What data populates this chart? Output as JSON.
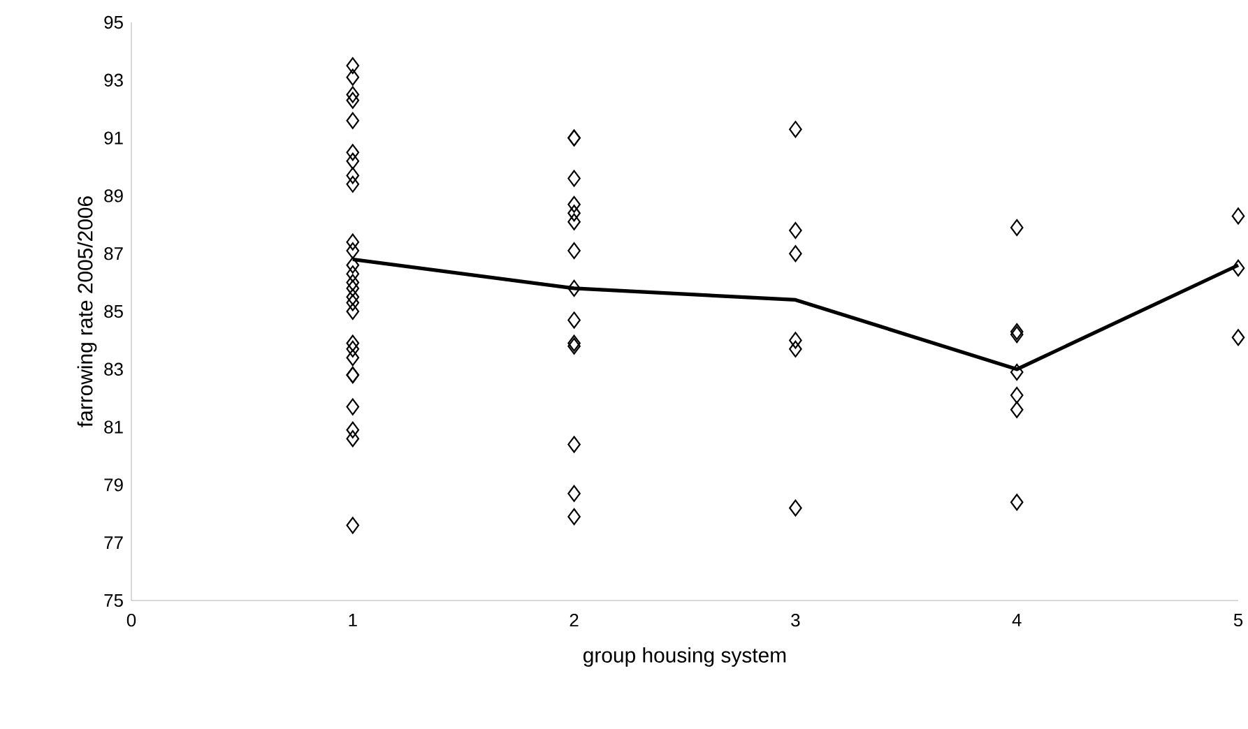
{
  "chart_data": {
    "type": "scatter",
    "xlabel": "group housing system",
    "ylabel": "farrowing rate 2005/2006",
    "xlim": [
      0,
      5
    ],
    "xticks": [
      0,
      1,
      2,
      3,
      4,
      5
    ],
    "ylim": [
      75,
      95
    ],
    "yticks": [
      75,
      77,
      79,
      81,
      83,
      85,
      87,
      89,
      91,
      93,
      95
    ],
    "grid": false,
    "marker": "diamond",
    "series": [
      {
        "color": "#000000",
        "x": [
          1,
          1,
          1,
          1,
          1,
          1,
          1,
          1,
          1,
          1,
          1,
          1,
          1,
          1,
          1,
          1,
          1,
          1,
          1,
          1,
          1,
          1,
          1,
          1,
          1,
          1,
          1,
          2,
          2,
          2,
          2,
          2,
          2,
          2,
          2,
          2,
          2,
          2,
          2,
          2,
          2,
          3,
          3,
          3,
          3,
          3,
          3,
          4,
          4,
          4,
          4,
          4,
          4,
          4,
          5,
          5,
          5
        ],
        "values": [
          93.5,
          93.1,
          92.5,
          92.3,
          91.6,
          90.5,
          90.2,
          89.7,
          89.4,
          87.4,
          87.1,
          86.6,
          86.3,
          86.0,
          85.8,
          85.5,
          85.3,
          85.0,
          83.9,
          83.7,
          83.4,
          82.8,
          82.8,
          81.7,
          80.9,
          80.6,
          77.6,
          91.0,
          91.0,
          89.6,
          88.7,
          88.4,
          88.1,
          87.1,
          85.8,
          84.7,
          83.9,
          83.8,
          80.4,
          78.7,
          77.9,
          91.3,
          87.8,
          87.0,
          84.0,
          83.7,
          78.2,
          87.9,
          84.3,
          84.2,
          82.9,
          82.1,
          81.6,
          78.4,
          88.3,
          86.5,
          84.1
        ]
      },
      {
        "type": "line",
        "marker": "none",
        "color": "#000000",
        "x": [
          1,
          2,
          3,
          4,
          5
        ],
        "values": [
          86.8,
          85.8,
          85.4,
          83.0,
          86.6
        ]
      }
    ]
  }
}
